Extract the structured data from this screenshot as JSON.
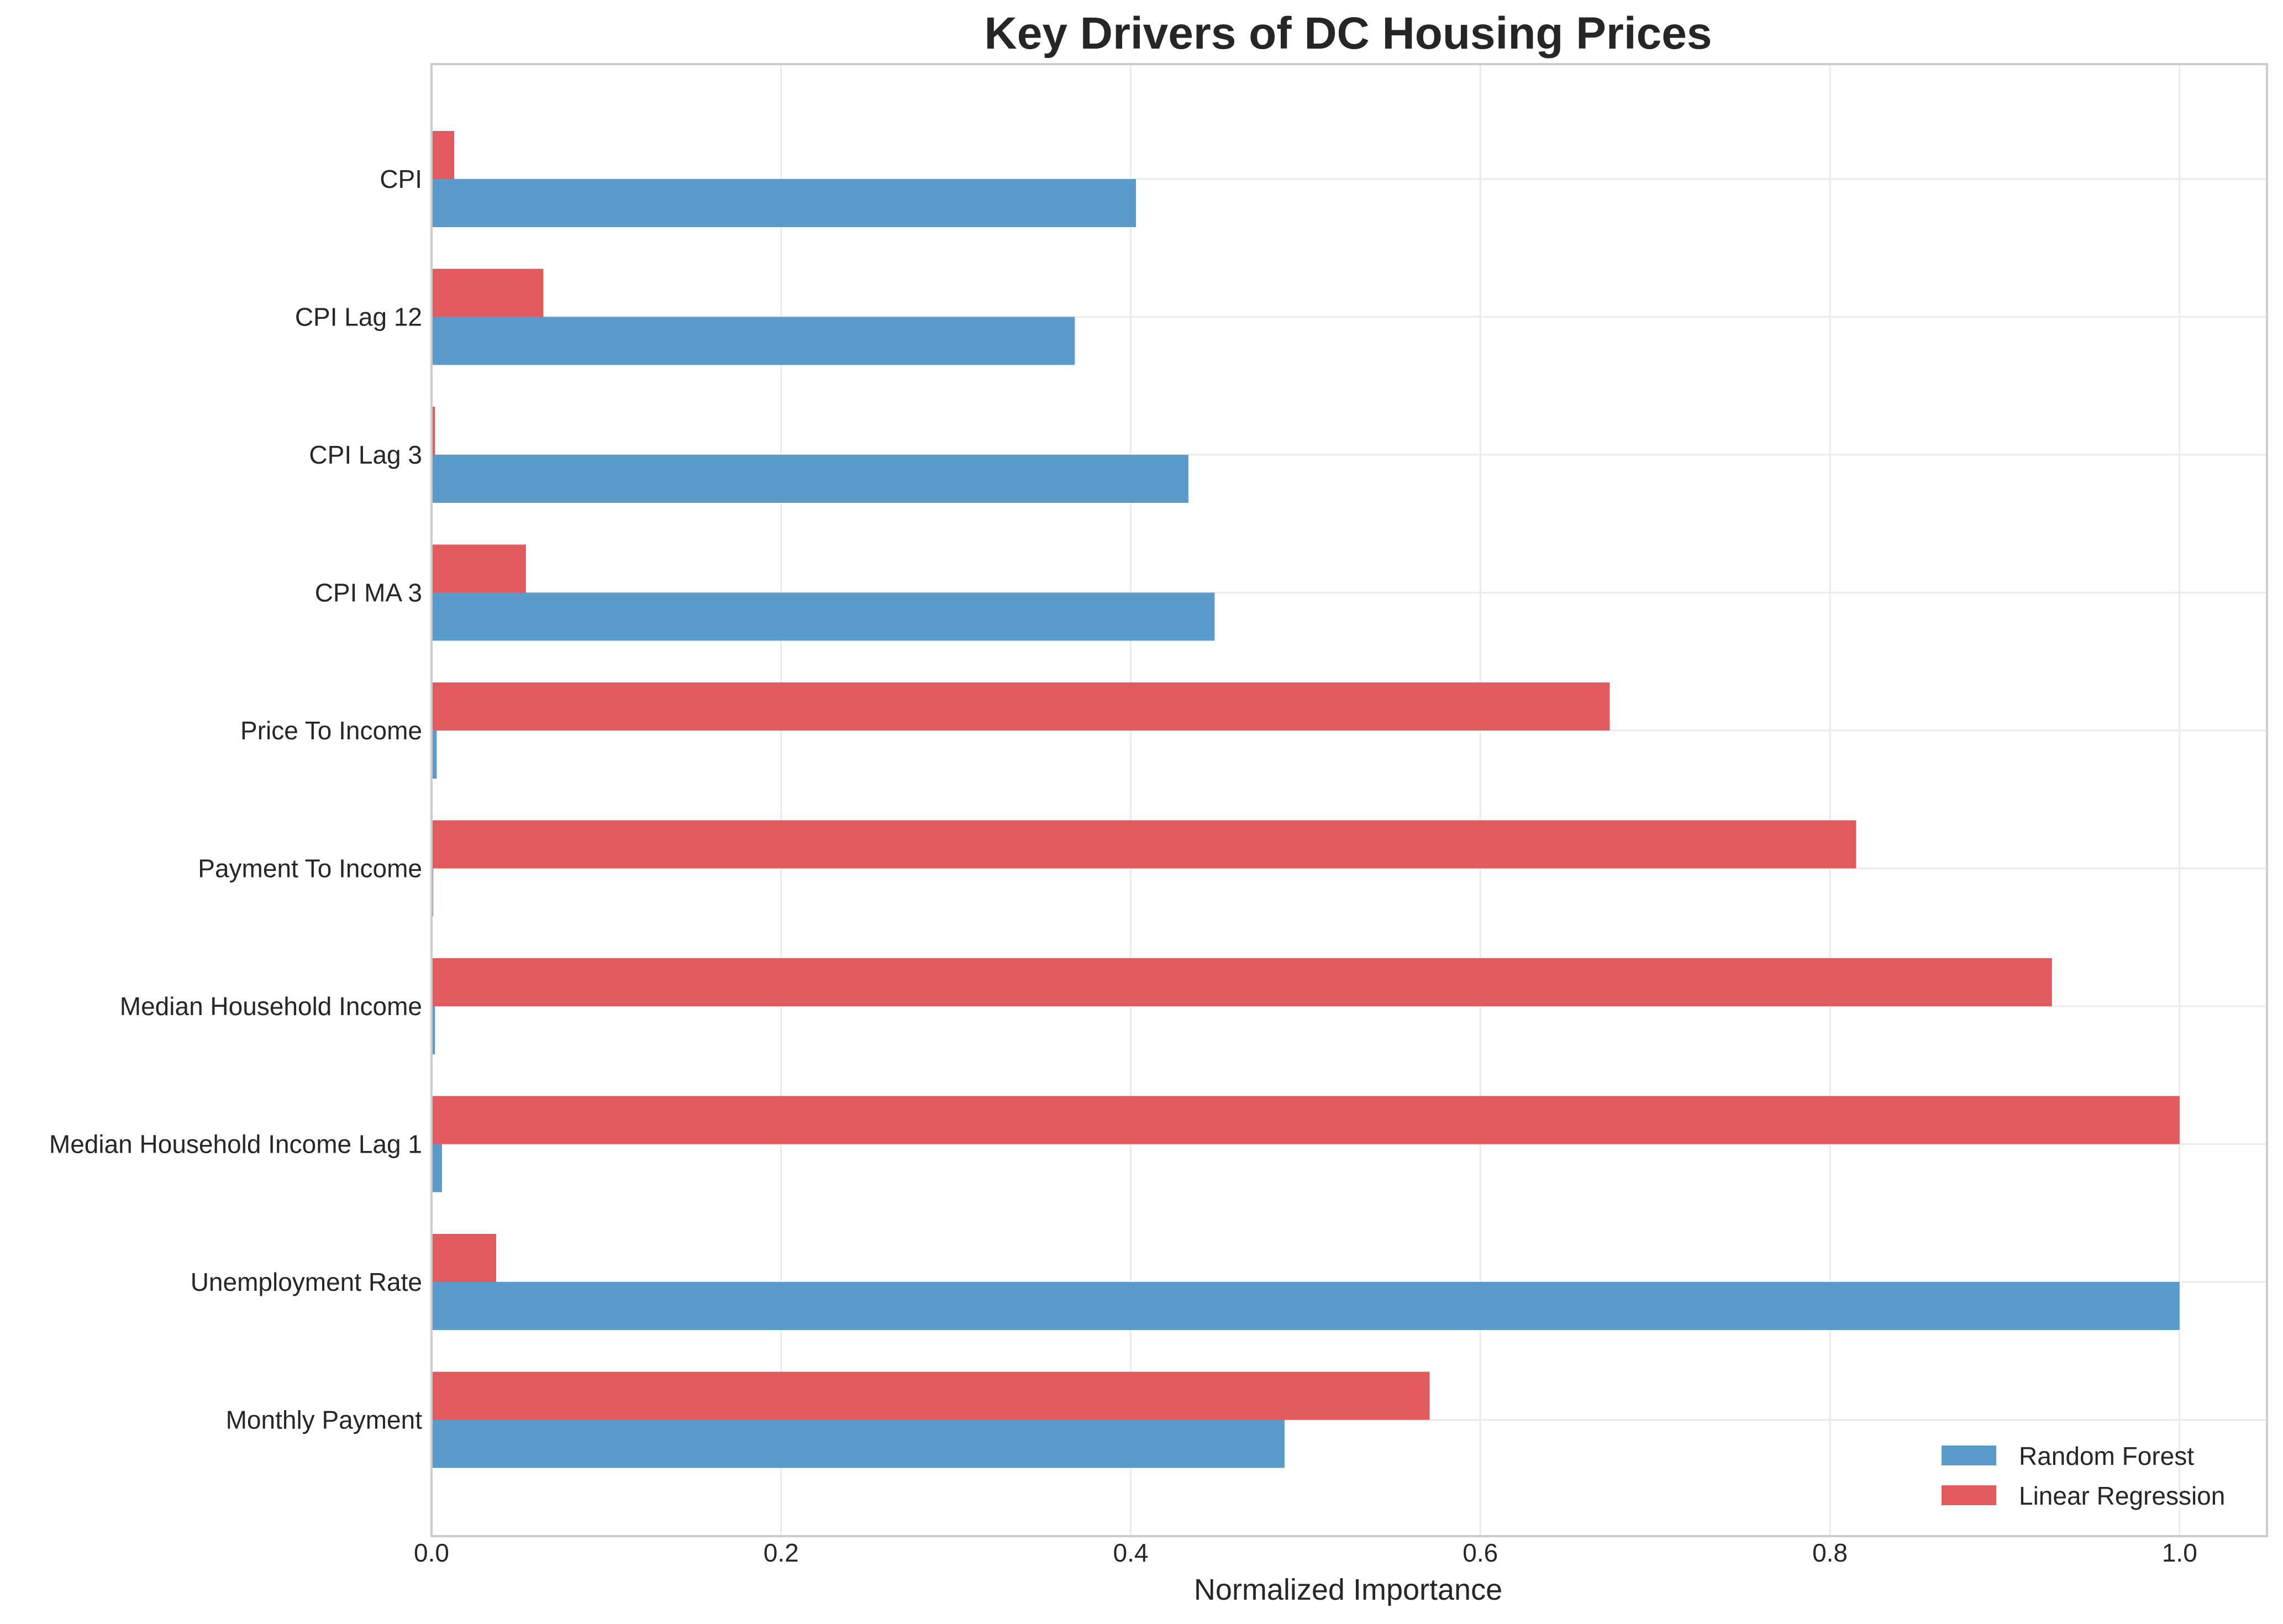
{
  "chart_data": {
    "type": "bar",
    "orientation": "horizontal",
    "title": "Key Drivers of DC Housing Prices",
    "xlabel": "Normalized Importance",
    "ylabel": "",
    "xlim": [
      0,
      1.05
    ],
    "xticks": [
      "0.0",
      "0.2",
      "0.4",
      "0.6",
      "0.8",
      "1.0"
    ],
    "grid": true,
    "legend_position": "bottom-right",
    "categories": [
      "CPI",
      "CPI Lag 12",
      "CPI Lag 3",
      "CPI MA 3",
      "Price To Income",
      "Payment To Income",
      "Median Household Income",
      "Median Household Income Lag 1",
      "Unemployment Rate",
      "Monthly Payment"
    ],
    "series": [
      {
        "name": "Random Forest",
        "color": "#5b9bcb",
        "values": [
          0.403,
          0.368,
          0.433,
          0.448,
          0.003,
          0.001,
          0.002,
          0.006,
          1.0,
          0.488
        ]
      },
      {
        "name": "Linear Regression",
        "color": "#e05a5e",
        "values": [
          0.013,
          0.064,
          0.002,
          0.054,
          0.674,
          0.815,
          0.927,
          1.0,
          0.037,
          0.571
        ]
      }
    ]
  }
}
